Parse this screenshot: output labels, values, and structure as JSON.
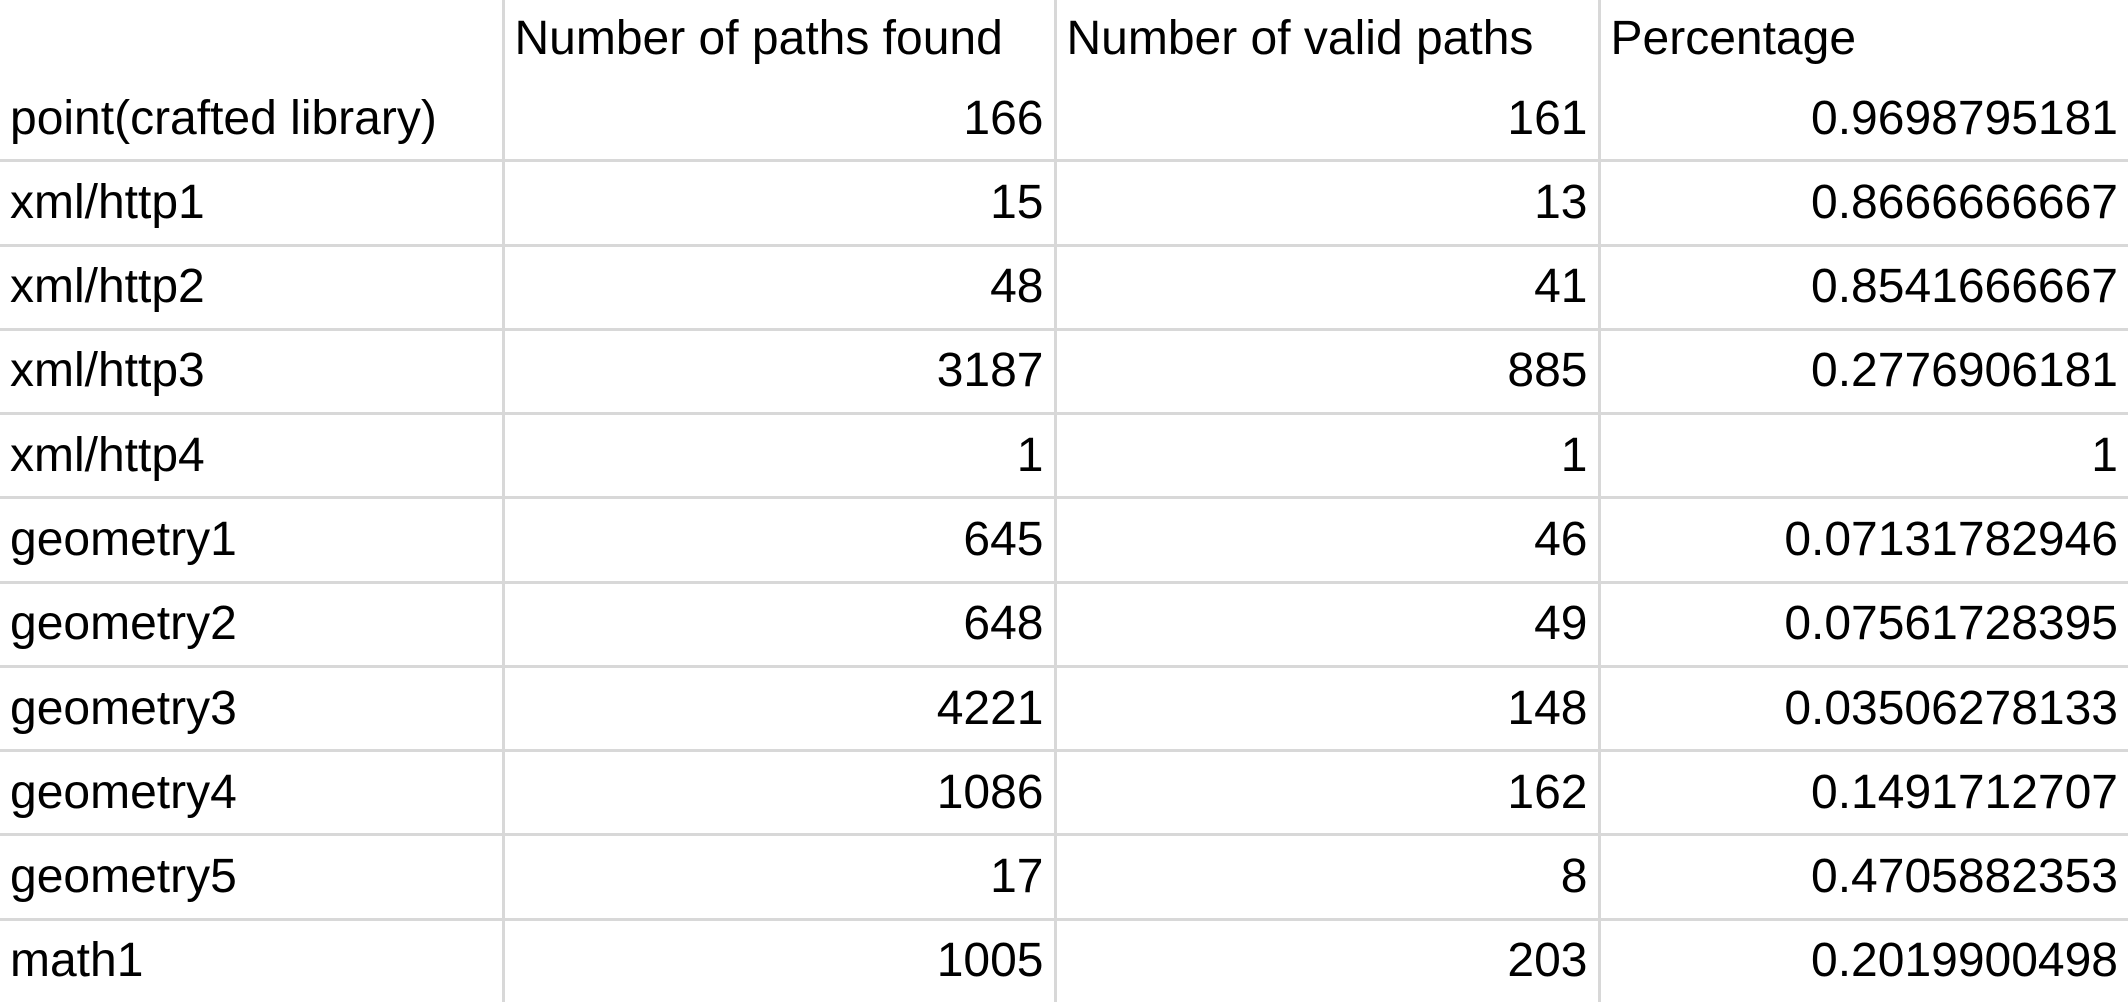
{
  "columns": [
    "",
    "Number of paths found",
    "Number of valid paths",
    "Percentage"
  ],
  "rows": [
    [
      "point(crafted library)",
      "166",
      "161",
      "0.9698795181"
    ],
    [
      "xml/http1",
      "15",
      "13",
      "0.8666666667"
    ],
    [
      "xml/http2",
      "48",
      "41",
      "0.8541666667"
    ],
    [
      "xml/http3",
      "3187",
      "885",
      "0.2776906181"
    ],
    [
      "xml/http4",
      "1",
      "1",
      "1"
    ],
    [
      "geometry1",
      "645",
      "46",
      "0.07131782946"
    ],
    [
      "geometry2",
      "648",
      "49",
      "0.07561728395"
    ],
    [
      "geometry3",
      "4221",
      "148",
      "0.03506278133"
    ],
    [
      "geometry4",
      "1086",
      "162",
      "0.1491712707"
    ],
    [
      "geometry5",
      "17",
      "8",
      "0.4705882353"
    ],
    [
      "math1",
      "1005",
      "203",
      "0.2019900498"
    ]
  ],
  "colors": {
    "gridline": "#d8d8d8",
    "text": "#000000",
    "background": "#ffffff"
  }
}
